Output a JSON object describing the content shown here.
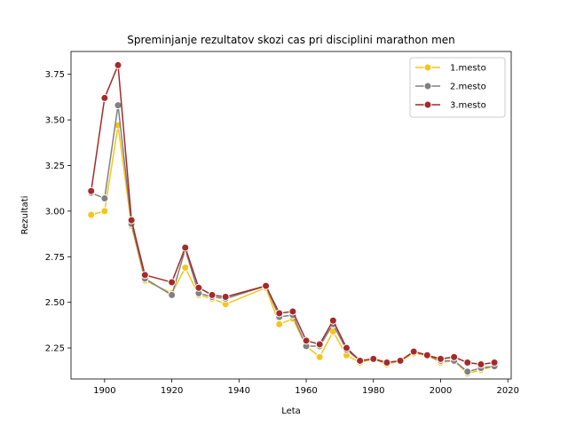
{
  "chart_data": {
    "type": "line",
    "title": "Spreminjanje rezultatov skozi cas pri disciplini marathon men",
    "xlabel": "Leta",
    "ylabel": "Rezultati",
    "xlim": [
      1890.0,
      2021.0
    ],
    "ylim": [
      2.08,
      3.875
    ],
    "x_ticks": [
      1900,
      1920,
      1940,
      1960,
      1980,
      2000,
      2020
    ],
    "y_ticks": [
      2.25,
      2.5,
      2.75,
      3.0,
      3.25,
      3.5,
      3.75
    ],
    "y_tick_labels": [
      "2.25",
      "2.50",
      "2.75",
      "3.00",
      "3.25",
      "3.50",
      "3.75"
    ],
    "legend": {
      "position": "top-right"
    },
    "grid": false,
    "series": [
      {
        "name": "1.mesto",
        "color": "#f5c518",
        "x": [
          1896,
          1900,
          1904,
          1908,
          1912,
          1920,
          1924,
          1928,
          1932,
          1936,
          1948,
          1952,
          1956,
          1960,
          1964,
          1968,
          1972,
          1976,
          1980,
          1984,
          1988,
          1992,
          1996,
          2000,
          2004,
          2008,
          2012,
          2016
        ],
        "values": [
          2.98,
          3.0,
          3.47,
          2.92,
          2.62,
          2.55,
          2.69,
          2.54,
          2.52,
          2.49,
          2.58,
          2.38,
          2.41,
          2.26,
          2.2,
          2.34,
          2.21,
          2.17,
          2.19,
          2.16,
          2.18,
          2.22,
          2.21,
          2.17,
          2.18,
          2.11,
          2.13,
          2.15
        ]
      },
      {
        "name": "2.mesto",
        "color": "#808080",
        "x": [
          1896,
          1900,
          1904,
          1908,
          1912,
          1920,
          1924,
          1928,
          1932,
          1936,
          1948,
          1952,
          1956,
          1960,
          1964,
          1968,
          1972,
          1976,
          1980,
          1984,
          1988,
          1992,
          1996,
          2000,
          2004,
          2008,
          2012,
          2016
        ],
        "values": [
          3.1,
          3.07,
          3.58,
          2.93,
          2.63,
          2.54,
          2.79,
          2.55,
          2.53,
          2.52,
          2.59,
          2.42,
          2.43,
          2.26,
          2.26,
          2.38,
          2.24,
          2.18,
          2.19,
          2.17,
          2.18,
          2.23,
          2.21,
          2.18,
          2.18,
          2.12,
          2.14,
          2.15
        ]
      },
      {
        "name": "3.mesto",
        "color": "#a52a2a",
        "x": [
          1896,
          1900,
          1904,
          1908,
          1912,
          1920,
          1924,
          1928,
          1932,
          1936,
          1948,
          1952,
          1956,
          1960,
          1964,
          1968,
          1972,
          1976,
          1980,
          1984,
          1988,
          1992,
          1996,
          2000,
          2004,
          2008,
          2012,
          2016
        ],
        "values": [
          3.11,
          3.62,
          3.8,
          2.95,
          2.65,
          2.61,
          2.8,
          2.58,
          2.54,
          2.53,
          2.59,
          2.44,
          2.45,
          2.29,
          2.27,
          2.4,
          2.25,
          2.18,
          2.19,
          2.17,
          2.18,
          2.23,
          2.21,
          2.19,
          2.2,
          2.17,
          2.16,
          2.17
        ]
      }
    ]
  }
}
